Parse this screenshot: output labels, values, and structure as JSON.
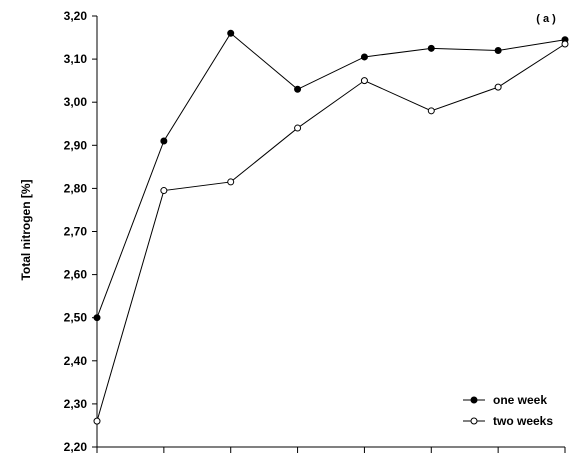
{
  "chart_data": {
    "type": "line",
    "panel_label": "( a )",
    "ylabel": "Total nitrogen [%]",
    "xlabel": "",
    "ylim": [
      2.2,
      3.2
    ],
    "yticks": [
      "2,20",
      "2,30",
      "2,40",
      "2,50",
      "2,60",
      "2,70",
      "2,80",
      "2,90",
      "3,00",
      "3,10",
      "3,20"
    ],
    "x": [
      1,
      2,
      3,
      4,
      5,
      6,
      7,
      8
    ],
    "grid": false,
    "legend_position": "bottom-right",
    "series": [
      {
        "name": "one week",
        "marker": "filled-circle",
        "color": "#000000",
        "values": [
          2.5,
          2.91,
          3.16,
          3.03,
          3.105,
          3.125,
          3.12,
          3.145
        ]
      },
      {
        "name": "two weeks",
        "marker": "open-circle",
        "color": "#000000",
        "values": [
          2.26,
          2.795,
          2.815,
          2.94,
          3.05,
          2.98,
          3.035,
          3.135
        ]
      }
    ]
  }
}
